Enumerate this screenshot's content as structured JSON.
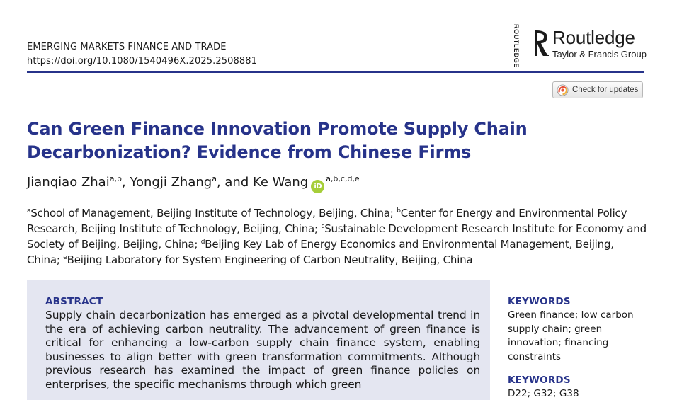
{
  "journal": {
    "name": "EMERGING MARKETS FINANCE AND TRADE",
    "doi": "https://doi.org/10.1080/1540496X.2025.2508881"
  },
  "publisher": {
    "vertical": "ROUTLEDGE",
    "name": "Routledge",
    "group": "Taylor & Francis Group"
  },
  "check_updates": {
    "label": "Check for updates"
  },
  "title": "Can Green Finance Innovation Promote Supply Chain Decarbonization? Evidence from Chinese Firms",
  "authors": [
    {
      "name": "Jianqiao Zhai",
      "sup": "a,b",
      "sep": ", "
    },
    {
      "name": "Yongji Zhang",
      "sup": "a",
      "sep": ", and "
    },
    {
      "name": "Ke Wang",
      "sup": "a,b,c,d,e",
      "sep": ""
    }
  ],
  "orcid_label": "iD",
  "affiliations": [
    {
      "sup": "a",
      "text": "School of Management, Beijing Institute of Technology, Beijing, China; "
    },
    {
      "sup": "b",
      "text": "Center for Energy and Environmental Policy Research, Beijing Institute of Technology, Beijing, China; "
    },
    {
      "sup": "c",
      "text": "Sustainable Development Research Institute for Economy and Society of Beijing, Beijing, China; "
    },
    {
      "sup": "d",
      "text": "Beijing Key Lab of Energy Economics and Environmental Management, Beijing, China; "
    },
    {
      "sup": "e",
      "text": "Beijing Laboratory for System Engineering of Carbon Neutrality, Beijing, China"
    }
  ],
  "abstract": {
    "heading": "ABSTRACT",
    "text": "Supply chain decarbonization has emerged as a pivotal developmental trend in the era of achieving carbon neutrality. The advancement of green finance is critical for enhancing a low-carbon supply chain finance system, enabling businesses to align better with green transformation commitments. Although previous research has examined the impact of green finance policies on enterprises, the specific mechanisms through which green"
  },
  "keywords": [
    {
      "heading": "KEYWORDS",
      "text": "Green finance; low carbon supply chain; green innovation; financing constraints"
    },
    {
      "heading": "KEYWORDS",
      "text": "D22; G32; G38"
    }
  ],
  "colors": {
    "accent": "#27338a",
    "abstract_bg": "#e4e6f1",
    "orcid": "#a6ce39"
  }
}
